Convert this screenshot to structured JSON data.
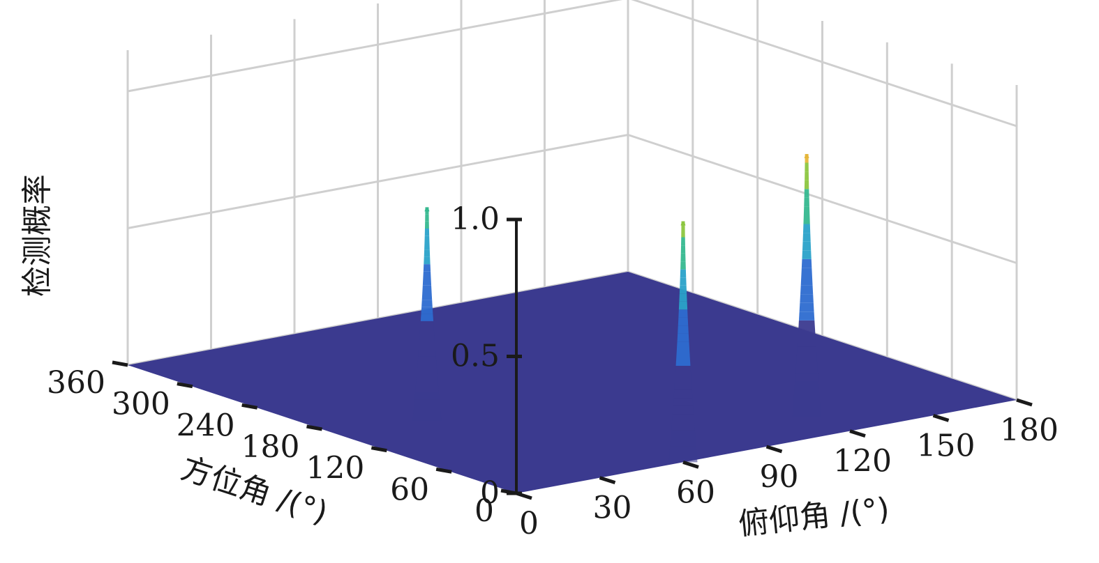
{
  "chart_data": {
    "type": "surface3d",
    "title": "",
    "xlabel": "方位角 /(°)",
    "ylabel": "俯仰角 /(°)",
    "zlabel": "检测概率",
    "x_ticks": [
      "0",
      "60",
      "120",
      "180",
      "240",
      "300",
      "360"
    ],
    "y_ticks": [
      "0",
      "30",
      "60",
      "90",
      "120",
      "150",
      "180"
    ],
    "z_ticks": [
      "0",
      "0.5",
      "1.0"
    ],
    "xlim": [
      0,
      360
    ],
    "ylim": [
      0,
      180
    ],
    "zlim": [
      0,
      1
    ],
    "grid": true,
    "colormap": "parula",
    "surface_base_color": "#3b3a8f",
    "peaks": [
      {
        "azimuth": 0,
        "elevation": 60,
        "value": 0.88
      },
      {
        "azimuth": 40,
        "elevation": 120,
        "value": 0.96
      },
      {
        "azimuth": 160,
        "elevation": 30,
        "value": 0.78
      }
    ]
  }
}
